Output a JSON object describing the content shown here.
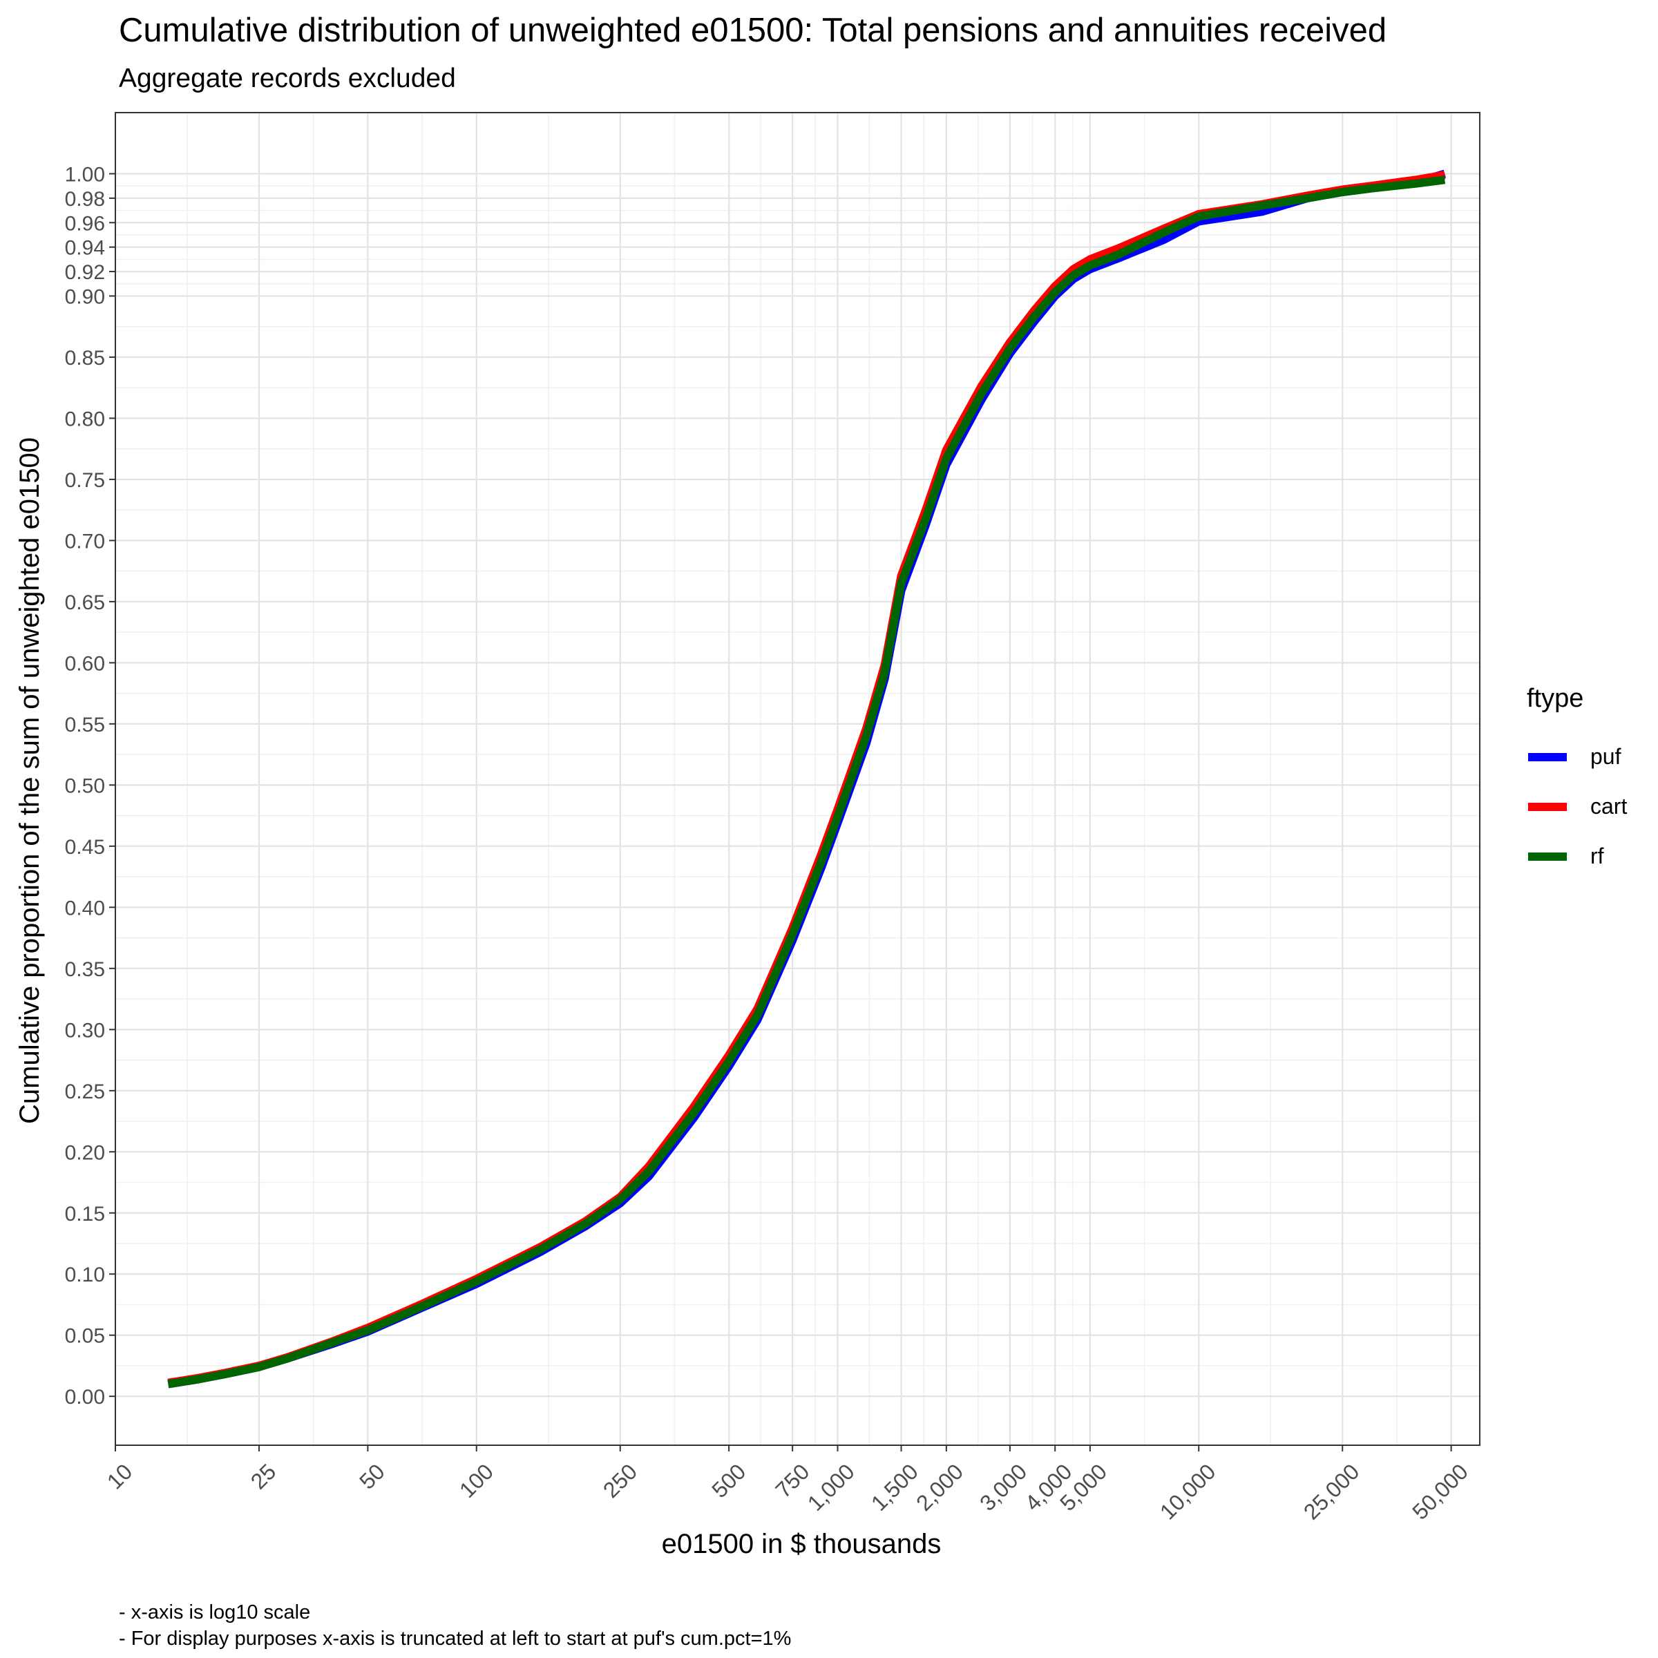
{
  "chart_data": {
    "type": "line",
    "title": "Cumulative distribution of unweighted e01500: Total pensions and annuities received",
    "subtitle": "Aggregate records excluded",
    "xlabel": "e01500 in $ thousands",
    "ylabel": "Cumulative proportion of the sum of unweighted e01500",
    "x_scale": "log10",
    "xlim": [
      10,
      60000
    ],
    "ylim": [
      -0.04,
      1.05
    ],
    "x_ticks": [
      10,
      25,
      50,
      100,
      250,
      500,
      750,
      1000,
      1500,
      2000,
      3000,
      4000,
      5000,
      10000,
      25000,
      50000
    ],
    "x_tick_labels": [
      "10",
      "25",
      "50",
      "100",
      "250",
      "500",
      "750",
      "1,000",
      "1,500",
      "2,000",
      "3,000",
      "4,000",
      "5,000",
      "10,000",
      "25,000",
      "50,000"
    ],
    "y_ticks": [
      0,
      0.05,
      0.1,
      0.15,
      0.2,
      0.25,
      0.3,
      0.35,
      0.4,
      0.45,
      0.5,
      0.55,
      0.6,
      0.65,
      0.7,
      0.75,
      0.8,
      0.85,
      0.9,
      0.92,
      0.94,
      0.96,
      0.98,
      1.0
    ],
    "y_tick_labels": [
      "0.00",
      "0.05",
      "0.10",
      "0.15",
      "0.20",
      "0.25",
      "0.30",
      "0.35",
      "0.40",
      "0.45",
      "0.50",
      "0.55",
      "0.60",
      "0.65",
      "0.70",
      "0.75",
      "0.80",
      "0.85",
      "0.90",
      "0.92",
      "0.94",
      "0.96",
      "0.98",
      "1.00"
    ],
    "grid": true,
    "legend": {
      "title": "ftype",
      "position": "right"
    },
    "series": [
      {
        "name": "puf",
        "color": "#0000FF",
        "x": [
          14,
          17,
          20,
          25,
          30,
          40,
          50,
          70,
          100,
          150,
          200,
          250,
          300,
          400,
          500,
          600,
          750,
          900,
          1000,
          1200,
          1350,
          1500,
          1750,
          2000,
          2500,
          3000,
          3500,
          4000,
          4500,
          5000,
          6000,
          8000,
          10000,
          15000,
          20000,
          25000,
          30000,
          40000,
          48000
        ],
        "y": [
          0.01,
          0.014,
          0.018,
          0.024,
          0.031,
          0.043,
          0.053,
          0.072,
          0.092,
          0.118,
          0.139,
          0.158,
          0.18,
          0.228,
          0.27,
          0.308,
          0.373,
          0.432,
          0.469,
          0.534,
          0.587,
          0.659,
          0.712,
          0.762,
          0.815,
          0.853,
          0.879,
          0.9,
          0.914,
          0.922,
          0.931,
          0.946,
          0.961,
          0.969,
          0.98,
          0.985,
          0.988,
          0.993,
          1.0
        ]
      },
      {
        "name": "cart",
        "color": "#FF0000",
        "x": [
          14,
          17,
          20,
          25,
          30,
          40,
          50,
          70,
          100,
          150,
          200,
          250,
          300,
          400,
          500,
          600,
          750,
          900,
          1000,
          1200,
          1350,
          1500,
          1750,
          2000,
          2500,
          3000,
          3500,
          4000,
          4500,
          5000,
          6000,
          8000,
          10000,
          15000,
          20000,
          25000,
          30000,
          40000,
          48000
        ],
        "y": [
          0.011,
          0.015,
          0.019,
          0.025,
          0.032,
          0.045,
          0.056,
          0.075,
          0.096,
          0.122,
          0.143,
          0.163,
          0.188,
          0.237,
          0.279,
          0.317,
          0.383,
          0.443,
          0.48,
          0.546,
          0.598,
          0.671,
          0.724,
          0.774,
          0.826,
          0.862,
          0.888,
          0.908,
          0.922,
          0.93,
          0.939,
          0.955,
          0.967,
          0.975,
          0.982,
          0.987,
          0.99,
          0.995,
          0.999
        ]
      },
      {
        "name": "rf",
        "color": "#006400",
        "x": [
          14,
          17,
          20,
          25,
          30,
          40,
          50,
          70,
          100,
          150,
          200,
          250,
          300,
          400,
          500,
          600,
          750,
          900,
          1000,
          1200,
          1350,
          1500,
          1750,
          2000,
          2500,
          3000,
          3500,
          4000,
          4500,
          5000,
          6000,
          8000,
          10000,
          15000,
          20000,
          25000,
          30000,
          40000,
          48000
        ],
        "y": [
          0.01,
          0.014,
          0.018,
          0.024,
          0.031,
          0.044,
          0.054,
          0.073,
          0.094,
          0.12,
          0.141,
          0.161,
          0.184,
          0.232,
          0.274,
          0.312,
          0.378,
          0.437,
          0.474,
          0.54,
          0.592,
          0.665,
          0.717,
          0.767,
          0.82,
          0.857,
          0.883,
          0.903,
          0.917,
          0.925,
          0.934,
          0.952,
          0.965,
          0.974,
          0.98,
          0.985,
          0.988,
          0.992,
          0.995
        ]
      }
    ],
    "annotations": [
      "- x-axis is log10 scale",
      "- For display purposes x-axis is truncated at left to start at puf's cum.pct=1%"
    ]
  }
}
